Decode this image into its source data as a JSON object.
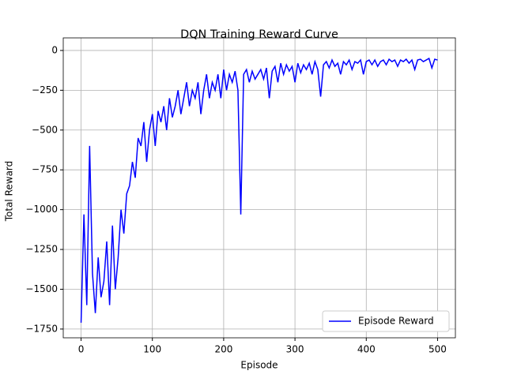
{
  "chart_data": {
    "type": "line",
    "title": "DQN Training Reward Curve",
    "xlabel": "Episode",
    "ylabel": "Total Reward",
    "x": [
      0,
      4,
      8,
      12,
      16,
      20,
      24,
      28,
      32,
      36,
      40,
      44,
      48,
      52,
      56,
      60,
      64,
      68,
      72,
      76,
      80,
      84,
      88,
      92,
      96,
      100,
      104,
      108,
      112,
      116,
      120,
      124,
      128,
      132,
      136,
      140,
      144,
      148,
      152,
      156,
      160,
      164,
      168,
      172,
      176,
      180,
      184,
      188,
      192,
      196,
      200,
      204,
      208,
      212,
      216,
      220,
      224,
      228,
      232,
      236,
      240,
      244,
      248,
      252,
      256,
      260,
      264,
      268,
      272,
      276,
      280,
      284,
      288,
      292,
      296,
      300,
      304,
      308,
      312,
      316,
      320,
      324,
      328,
      332,
      336,
      340,
      344,
      348,
      352,
      356,
      360,
      364,
      368,
      372,
      376,
      380,
      384,
      388,
      392,
      396,
      400,
      404,
      408,
      412,
      416,
      420,
      424,
      428,
      432,
      436,
      440,
      444,
      448,
      452,
      456,
      460,
      464,
      468,
      472,
      476,
      480,
      484,
      488,
      492,
      496,
      500
    ],
    "series": [
      {
        "name": "Episode Reward",
        "color": "#0000ff",
        "values": [
          -1710,
          -1030,
          -1600,
          -600,
          -1400,
          -1650,
          -1300,
          -1550,
          -1450,
          -1200,
          -1600,
          -1100,
          -1500,
          -1300,
          -1000,
          -1150,
          -900,
          -850,
          -700,
          -800,
          -550,
          -600,
          -450,
          -700,
          -500,
          -400,
          -600,
          -380,
          -450,
          -350,
          -500,
          -300,
          -420,
          -350,
          -250,
          -400,
          -300,
          -200,
          -350,
          -250,
          -300,
          -200,
          -400,
          -250,
          -150,
          -300,
          -200,
          -250,
          -150,
          -300,
          -120,
          -250,
          -150,
          -200,
          -130,
          -250,
          -1030,
          -150,
          -120,
          -200,
          -130,
          -180,
          -150,
          -120,
          -180,
          -110,
          -300,
          -130,
          -100,
          -200,
          -80,
          -150,
          -90,
          -130,
          -100,
          -200,
          -80,
          -140,
          -90,
          -120,
          -80,
          -150,
          -70,
          -120,
          -290,
          -90,
          -70,
          -110,
          -60,
          -100,
          -80,
          -150,
          -70,
          -90,
          -60,
          -120,
          -70,
          -80,
          -60,
          -150,
          -70,
          -60,
          -90,
          -60,
          -100,
          -70,
          -60,
          -90,
          -55,
          -70,
          -60,
          -100,
          -60,
          -70,
          -55,
          -80,
          -60,
          -120,
          -60,
          -55,
          -70,
          -60,
          -50,
          -110,
          -55,
          -60
        ]
      }
    ],
    "xlim": [
      -25,
      525
    ],
    "ylim": [
      -1805,
      79
    ],
    "xticks": [
      0,
      100,
      200,
      300,
      400,
      500
    ],
    "yticks": [
      {
        "value": -1750,
        "label": "−1750"
      },
      {
        "value": -1500,
        "label": "−1500"
      },
      {
        "value": -1250,
        "label": "−1250"
      },
      {
        "value": -1000,
        "label": "−1000"
      },
      {
        "value": -750,
        "label": "−750"
      },
      {
        "value": -500,
        "label": "−500"
      },
      {
        "value": -250,
        "label": "−250"
      },
      0
    ],
    "grid": true,
    "legend": "lower right"
  }
}
